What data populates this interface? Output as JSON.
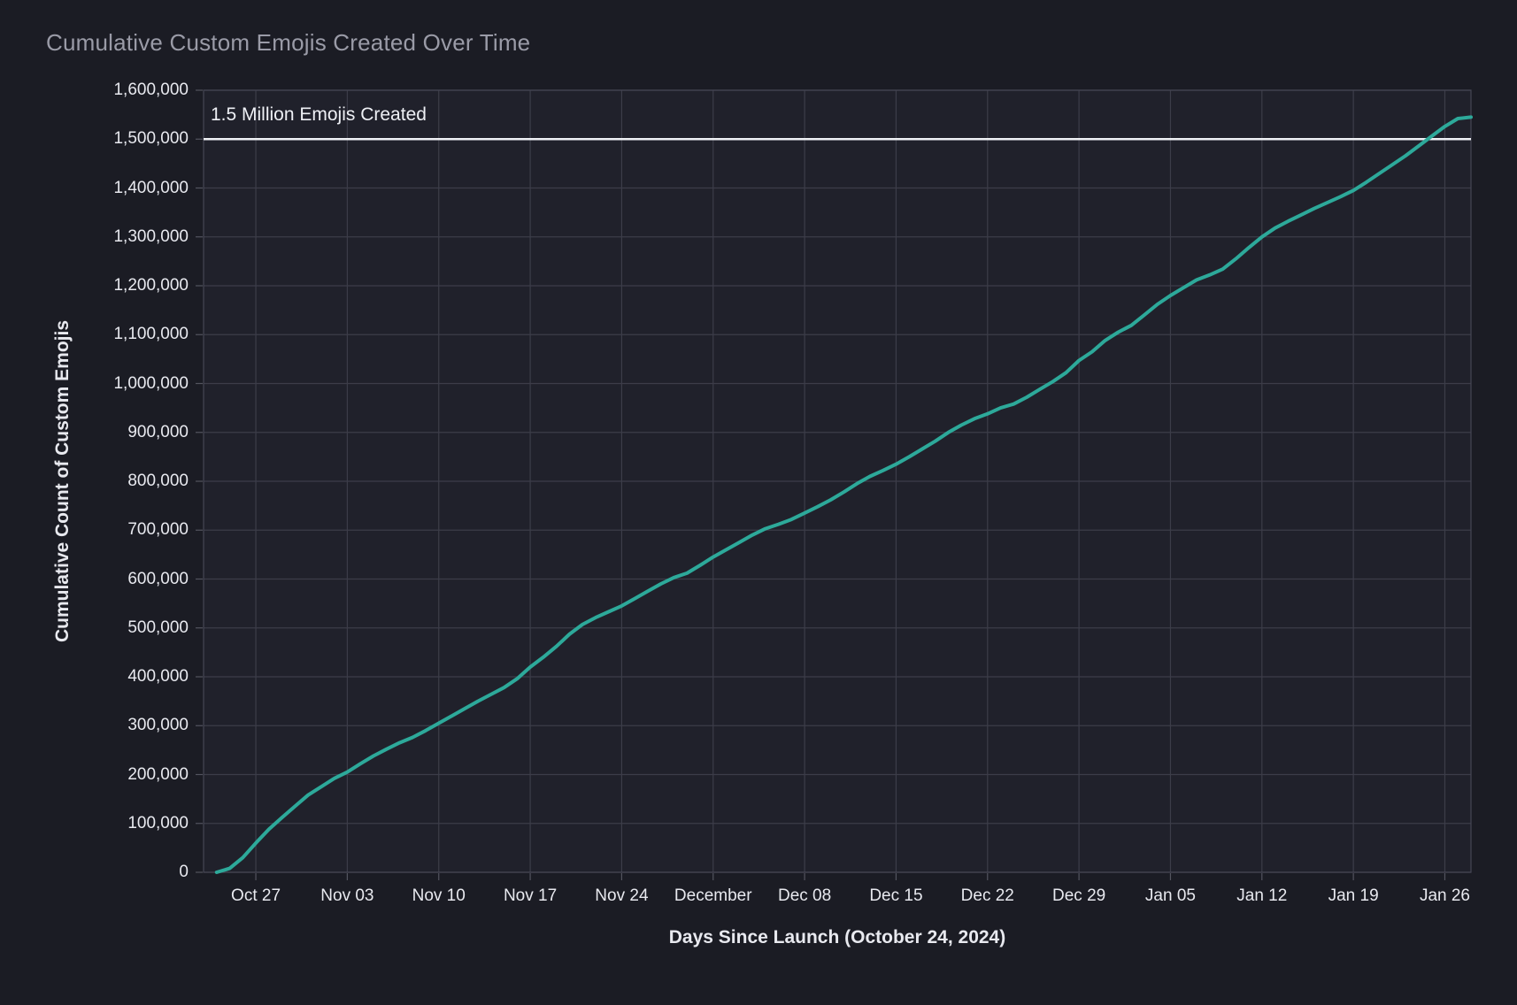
{
  "chart_data": {
    "type": "line",
    "title": "Cumulative Custom Emojis Created Over Time",
    "xlabel": "Days Since Launch (October 24, 2024)",
    "ylabel": "Cumulative Count of Custom Emojis",
    "annotation": {
      "label": "1.5 Million Emojis Created",
      "value": 1500000
    },
    "ylim": [
      0,
      1600000
    ],
    "x_domain_days": [
      -1,
      96
    ],
    "grid": true,
    "legend": "none",
    "x_ticks": [
      {
        "day": 3,
        "label": "Oct 27"
      },
      {
        "day": 10,
        "label": "Nov 03"
      },
      {
        "day": 17,
        "label": "Nov 10"
      },
      {
        "day": 24,
        "label": "Nov 17"
      },
      {
        "day": 31,
        "label": "Nov 24"
      },
      {
        "day": 38,
        "label": "December"
      },
      {
        "day": 45,
        "label": "Dec 08"
      },
      {
        "day": 52,
        "label": "Dec 15"
      },
      {
        "day": 59,
        "label": "Dec 22"
      },
      {
        "day": 66,
        "label": "Dec 29"
      },
      {
        "day": 73,
        "label": "Jan 05"
      },
      {
        "day": 80,
        "label": "Jan 12"
      },
      {
        "day": 87,
        "label": "Jan 19"
      },
      {
        "day": 94,
        "label": "Jan 26"
      }
    ],
    "y_ticks": [
      {
        "value": 0,
        "label": "0"
      },
      {
        "value": 100000,
        "label": "100,000"
      },
      {
        "value": 200000,
        "label": "200,000"
      },
      {
        "value": 300000,
        "label": "300,000"
      },
      {
        "value": 400000,
        "label": "400,000"
      },
      {
        "value": 500000,
        "label": "500,000"
      },
      {
        "value": 600000,
        "label": "600,000"
      },
      {
        "value": 700000,
        "label": "700,000"
      },
      {
        "value": 800000,
        "label": "800,000"
      },
      {
        "value": 900000,
        "label": "900,000"
      },
      {
        "value": 1000000,
        "label": "1,000,000"
      },
      {
        "value": 1100000,
        "label": "1,100,000"
      },
      {
        "value": 1200000,
        "label": "1,200,000"
      },
      {
        "value": 1300000,
        "label": "1,300,000"
      },
      {
        "value": 1400000,
        "label": "1,400,000"
      },
      {
        "value": 1500000,
        "label": "1,500,000"
      },
      {
        "value": 1600000,
        "label": "1,600,000"
      }
    ],
    "series": [
      {
        "name": "Cumulative Custom Emojis",
        "start_day": 0,
        "values": [
          0,
          8000,
          30000,
          60000,
          88000,
          112000,
          135000,
          158000,
          175000,
          192000,
          205000,
          222000,
          238000,
          252000,
          265000,
          276000,
          290000,
          305000,
          320000,
          335000,
          350000,
          364000,
          378000,
          396000,
          420000,
          440000,
          462000,
          487000,
          507000,
          521000,
          533000,
          545000,
          560000,
          575000,
          590000,
          603000,
          612000,
          628000,
          645000,
          660000,
          675000,
          690000,
          703000,
          712000,
          722000,
          735000,
          748000,
          762000,
          778000,
          795000,
          810000,
          822000,
          835000,
          850000,
          866000,
          882000,
          900000,
          915000,
          928000,
          938000,
          950000,
          958000,
          972000,
          988000,
          1004000,
          1022000,
          1047000,
          1065000,
          1088000,
          1105000,
          1119000,
          1140000,
          1162000,
          1180000,
          1196000,
          1212000,
          1222000,
          1234000,
          1255000,
          1278000,
          1300000,
          1318000,
          1332000,
          1345000,
          1358000,
          1370000,
          1382000,
          1395000,
          1412000,
          1430000,
          1448000,
          1466000,
          1486000,
          1506000,
          1526000,
          1542000,
          1545000
        ]
      }
    ],
    "colors": {
      "background": "#1b1c24",
      "plot_background": "#20212b",
      "grid": "#3c3d49",
      "spine": "#454654",
      "tick_mark": "#53545f",
      "series_line": "#2da99a",
      "threshold_line": "#eef0f4",
      "tick_text": "#e8e9ef",
      "title_text": "#9a9ba7",
      "axis_label_text": "#e8e9ef"
    }
  }
}
